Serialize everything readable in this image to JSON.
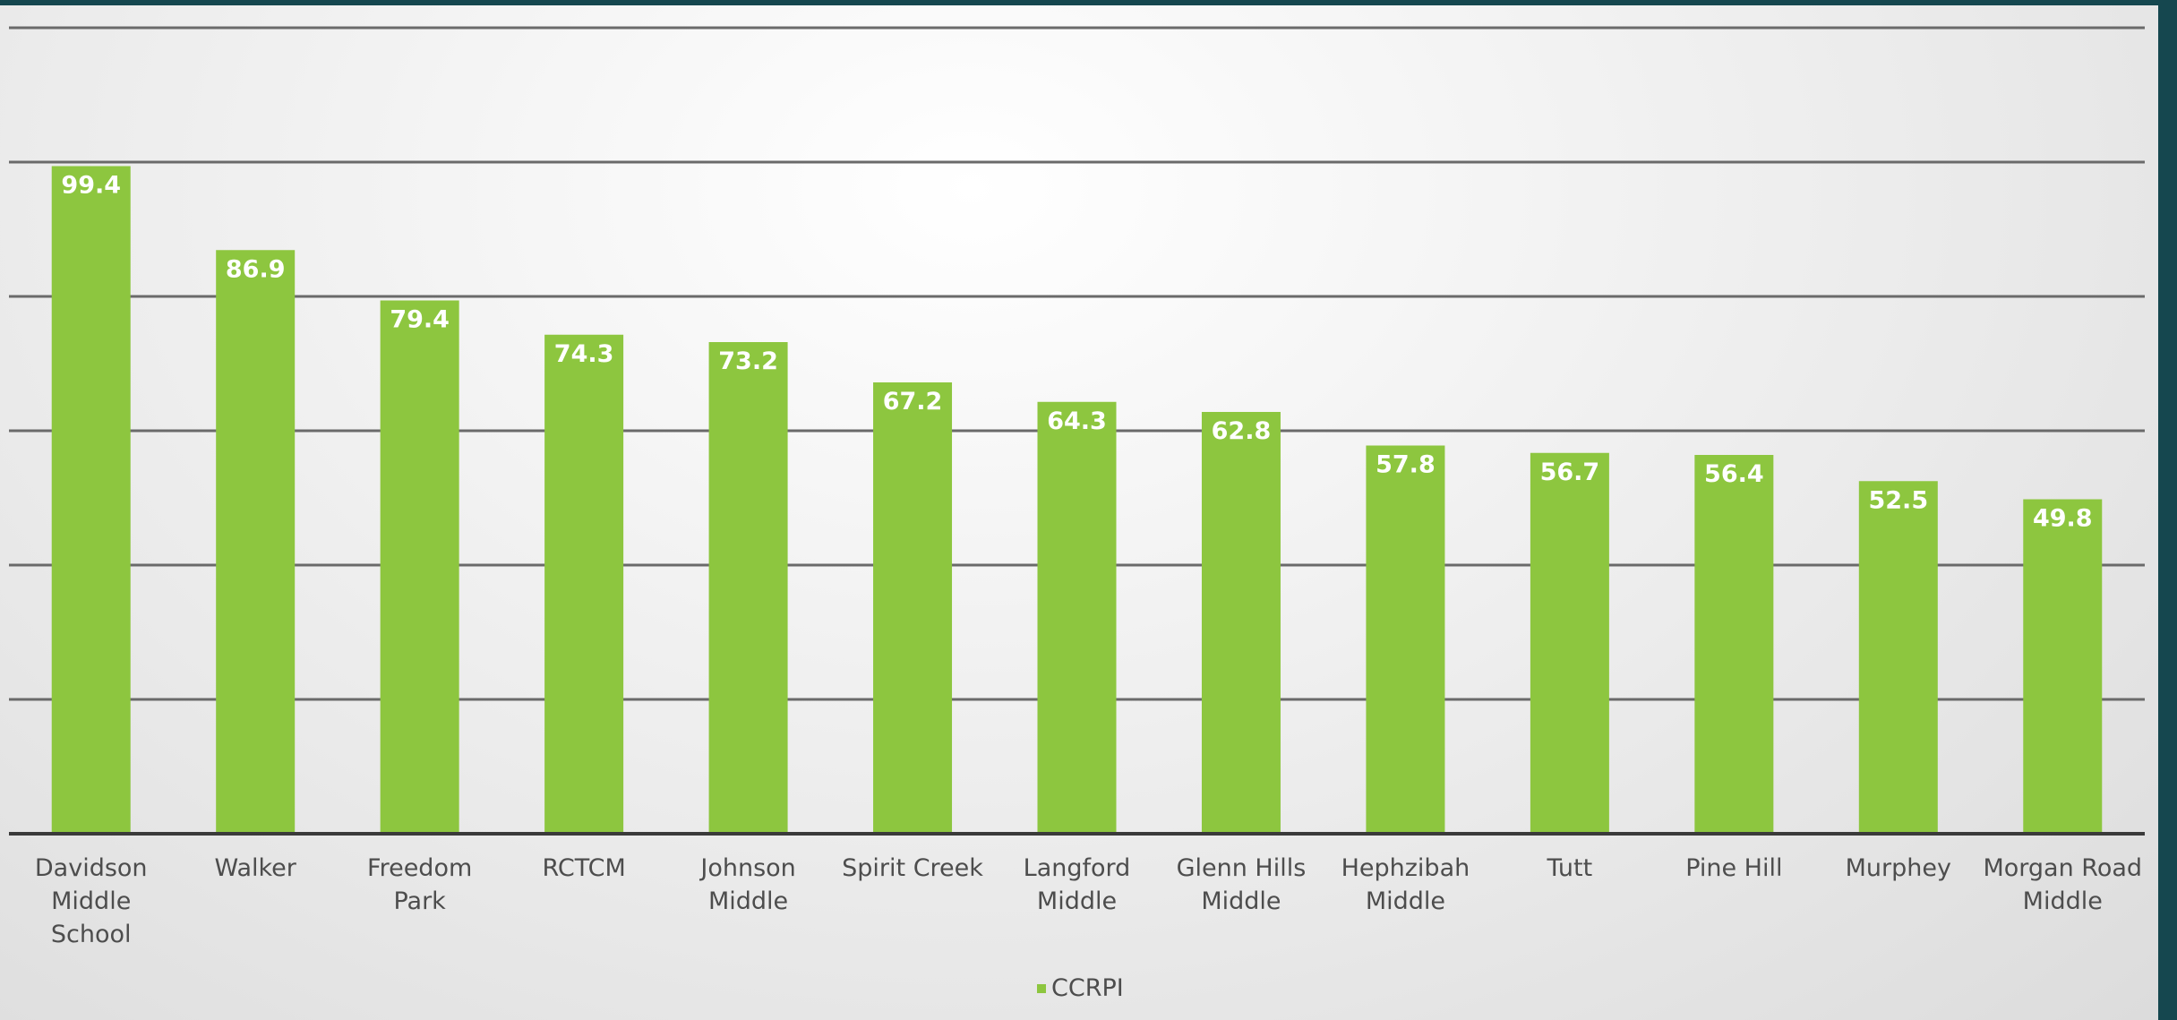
{
  "chart_data": {
    "type": "bar",
    "categories": [
      "Davidson Middle School",
      "Walker",
      "Freedom Park",
      "RCTCM",
      "Johnson Middle",
      "Spirit Creek",
      "Langford Middle",
      "Glenn Hills Middle",
      "Hephzibah Middle",
      "Tutt",
      "Pine Hill",
      "Murphey",
      "Morgan Road Middle"
    ],
    "category_lines": [
      [
        "Davidson",
        "Middle",
        "School"
      ],
      [
        "Walker"
      ],
      [
        "Freedom",
        "Park"
      ],
      [
        "RCTCM"
      ],
      [
        "Johnson",
        "Middle"
      ],
      [
        "Spirit Creek"
      ],
      [
        "Langford",
        "Middle"
      ],
      [
        "Glenn Hills",
        "Middle"
      ],
      [
        "Hephzibah",
        "Middle"
      ],
      [
        "Tutt"
      ],
      [
        "Pine Hill"
      ],
      [
        "Murphey"
      ],
      [
        "Morgan Road",
        "Middle"
      ]
    ],
    "series": [
      {
        "name": "CCRPI",
        "values": [
          99.4,
          86.9,
          79.4,
          74.3,
          73.2,
          67.2,
          64.3,
          62.8,
          57.8,
          56.7,
          56.4,
          52.5,
          49.8
        ],
        "color": "#8dc63f"
      }
    ],
    "value_labels": [
      "99.4",
      "86.9",
      "79.4",
      "74.3",
      "73.2",
      "67.2",
      "64.3",
      "62.8",
      "57.8",
      "56.7",
      "56.4",
      "52.5",
      "49.8"
    ],
    "ylim": [
      0,
      120
    ],
    "gridlines": [
      20,
      40,
      60,
      80,
      100,
      120
    ],
    "grid": true,
    "y_tick_labels_visible": false,
    "legend_position": "bottom",
    "title": "",
    "xlabel": "",
    "ylabel": ""
  },
  "colors": {
    "background": "#15474f",
    "bar": "#8dc63f",
    "gridline": "#6a6a6a",
    "text": "#4d4d4d"
  }
}
